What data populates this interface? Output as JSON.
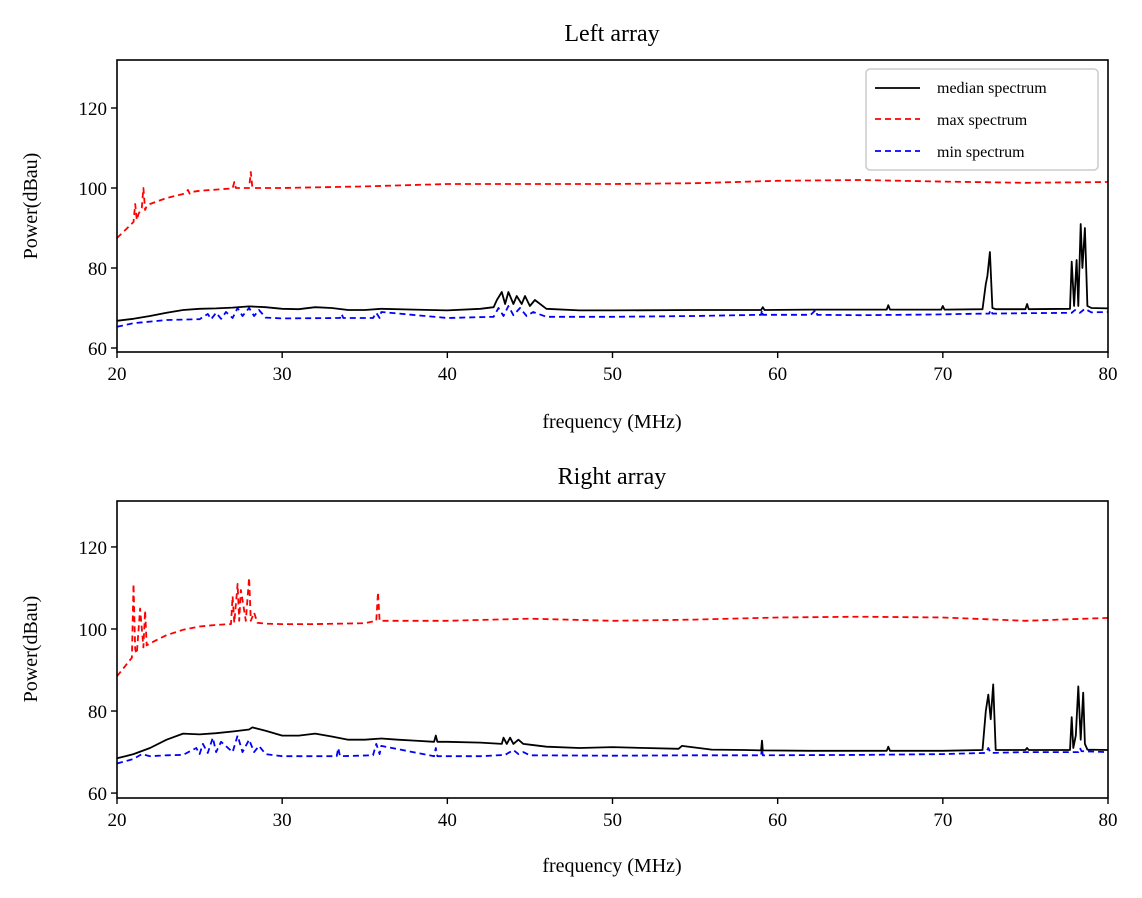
{
  "chart_data": [
    {
      "type": "line",
      "title": "Left array",
      "xlabel": "frequency (MHz)",
      "ylabel": "Power(dBau)",
      "xlim": [
        20,
        80
      ],
      "ylim": [
        59,
        132
      ],
      "xticks": [
        20,
        30,
        40,
        50,
        60,
        70,
        80
      ],
      "yticks": [
        60,
        80,
        100,
        120
      ],
      "grid": false,
      "legend": {
        "placement": "upper-right",
        "entries": [
          {
            "label": "median spectrum",
            "color": "#000000",
            "style": "solid"
          },
          {
            "label": "max spectrum",
            "color": "#ff0000",
            "style": "dashed"
          },
          {
            "label": "min spectrum",
            "color": "#0000ff",
            "style": "dashed"
          }
        ]
      },
      "series": [
        {
          "name": "median spectrum",
          "color": "#000000",
          "style": "solid",
          "x": [
            20,
            21,
            22,
            23,
            24,
            25,
            26,
            27,
            28,
            29,
            30,
            31,
            32,
            33,
            34,
            35,
            36,
            38,
            40,
            42,
            42.8,
            43,
            43.3,
            43.5,
            43.7,
            44,
            44.2,
            44.5,
            44.7,
            45,
            45.3,
            46,
            48,
            50,
            55,
            59,
            59.1,
            59.2,
            62,
            66.6,
            66.7,
            66.8,
            69.9,
            70,
            70.1,
            72.4,
            72.6,
            72.7,
            72.85,
            73,
            73.2,
            75,
            75.1,
            75.2,
            77.7,
            77.8,
            77.95,
            78.1,
            78.2,
            78.35,
            78.45,
            78.6,
            78.75,
            79,
            80
          ],
          "y": [
            66.8,
            67.3,
            68,
            68.8,
            69.5,
            69.8,
            69.9,
            70.1,
            70.4,
            70.2,
            69.8,
            69.7,
            70.2,
            70,
            69.5,
            69.5,
            69.8,
            69.6,
            69.4,
            69.8,
            70.2,
            72,
            74,
            71,
            74,
            71,
            73,
            71,
            73,
            70.5,
            72,
            69.8,
            69.4,
            69.4,
            69.5,
            69.5,
            70.2,
            69.5,
            69.6,
            69.6,
            70.7,
            69.6,
            69.6,
            70.5,
            69.6,
            69.7,
            76,
            78,
            84,
            70,
            69.7,
            69.7,
            71,
            69.7,
            69.8,
            81.6,
            70.5,
            82,
            70.5,
            91,
            80,
            90,
            70.5,
            70,
            69.9
          ]
        },
        {
          "name": "max spectrum",
          "color": "#ff0000",
          "style": "dashed",
          "x": [
            20,
            20.5,
            21,
            21.1,
            21.2,
            21.3,
            21.5,
            21.6,
            21.7,
            21.8,
            22,
            23,
            24,
            24.3,
            24.4,
            24.5,
            25,
            26,
            27,
            27.1,
            27.2,
            27.5,
            28,
            28.1,
            28.2,
            30,
            35,
            40,
            45,
            50,
            55,
            60,
            65,
            70,
            75,
            80
          ],
          "y": [
            87.5,
            89.5,
            91.5,
            96,
            92,
            93.5,
            95,
            100,
            94.5,
            95.5,
            96,
            97.5,
            98.5,
            99.5,
            98.6,
            99,
            99.3,
            99.6,
            99.9,
            101.5,
            100,
            100,
            100,
            104,
            100,
            100,
            100.4,
            101,
            101,
            101,
            101.2,
            101.8,
            102,
            101.6,
            101.3,
            101.5
          ]
        },
        {
          "name": "min spectrum",
          "color": "#0000ff",
          "style": "dashed",
          "x": [
            20,
            21,
            22,
            23,
            25,
            25.5,
            25.7,
            26,
            26.3,
            26.6,
            27,
            27.3,
            27.6,
            28,
            28.3,
            28.6,
            29,
            30,
            33.5,
            33.6,
            33.7,
            35.5,
            35.7,
            35.9,
            36,
            40,
            42.8,
            43.1,
            43.4,
            43.7,
            44,
            44.4,
            44.8,
            45.2,
            46,
            50,
            55,
            59,
            59.05,
            59.1,
            62,
            62.3,
            62.4,
            65,
            70,
            71,
            72.8,
            72.9,
            73,
            75,
            77.8,
            78,
            78.3,
            78.6,
            79,
            80
          ],
          "y": [
            65.3,
            66.2,
            66.6,
            67,
            67.2,
            68.5,
            67.2,
            68.8,
            67.3,
            69,
            67.5,
            70,
            68,
            70,
            68,
            69.5,
            67.6,
            67.4,
            67.5,
            68.5,
            67.5,
            67.5,
            68.8,
            67.5,
            69,
            67.5,
            67.8,
            70,
            68,
            70.5,
            68.2,
            70,
            68,
            69,
            67.8,
            67.8,
            68,
            68.3,
            69.5,
            68.3,
            68.3,
            69.5,
            68.3,
            68.2,
            68.4,
            68.5,
            68.6,
            69.5,
            68.6,
            68.7,
            68.8,
            69.5,
            68.8,
            69.8,
            68.9,
            69
          ]
        }
      ]
    },
    {
      "type": "line",
      "title": "Right array",
      "xlabel": "frequency (MHz)",
      "ylabel": "Power(dBau)",
      "xlim": [
        20,
        80
      ],
      "ylim": [
        58.8,
        131.2
      ],
      "xticks": [
        20,
        30,
        40,
        50,
        60,
        70,
        80
      ],
      "yticks": [
        60,
        80,
        100,
        120
      ],
      "grid": false,
      "series": [
        {
          "name": "median spectrum",
          "color": "#000000",
          "style": "solid",
          "x": [
            20,
            20.5,
            21,
            22,
            23,
            24,
            25,
            26,
            27,
            28,
            28.2,
            29,
            30,
            31,
            32,
            33,
            34,
            35,
            36,
            37,
            38,
            39.2,
            39.3,
            39.4,
            40,
            42,
            43.3,
            43.4,
            43.6,
            43.8,
            44,
            44.3,
            44.6,
            45,
            46,
            48,
            50,
            52,
            54,
            54.2,
            56,
            58,
            59,
            59.05,
            59.1,
            62,
            66.6,
            66.7,
            66.8,
            70,
            72.4,
            72.6,
            72.75,
            72.9,
            73.05,
            73.2,
            75,
            75.1,
            75.2,
            77.7,
            77.8,
            77.9,
            78.05,
            78.2,
            78.35,
            78.5,
            78.6,
            78.75,
            80
          ],
          "y": [
            68.5,
            69,
            69.5,
            71,
            73,
            74.5,
            74.3,
            74.6,
            75,
            75.5,
            76,
            75.2,
            74,
            74,
            74.5,
            73.8,
            73,
            73,
            73.3,
            73,
            72.8,
            72.5,
            74,
            72.5,
            72.5,
            72.3,
            72,
            73.5,
            72,
            73.5,
            72,
            73,
            72,
            71.8,
            71.3,
            71,
            71.2,
            71,
            70.8,
            71.5,
            70.6,
            70.5,
            70.4,
            72.8,
            70.4,
            70.3,
            70.3,
            71.3,
            70.3,
            70.3,
            70.5,
            80,
            84,
            78,
            86.5,
            70.5,
            70.5,
            71,
            70.5,
            70.5,
            78.5,
            71,
            74,
            86,
            73,
            84.5,
            72,
            70.6,
            70.5
          ]
        },
        {
          "name": "max spectrum",
          "color": "#ff0000",
          "style": "dashed",
          "x": [
            20,
            20.5,
            20.9,
            21,
            21.1,
            21.2,
            21.4,
            21.6,
            21.7,
            21.8,
            22,
            23,
            24,
            25,
            26,
            26.9,
            27,
            27.1,
            27.3,
            27.4,
            27.5,
            27.8,
            28,
            28.1,
            28.3,
            28.5,
            29,
            30,
            32,
            35,
            35.7,
            35.8,
            35.9,
            36,
            38,
            40,
            45,
            50,
            55,
            60,
            65,
            70,
            75,
            80
          ],
          "y": [
            88.5,
            91,
            93,
            111,
            95,
            94,
            105,
            95.5,
            104.5,
            96,
            96.5,
            98.5,
            99.8,
            100.6,
            101,
            101.2,
            108,
            101.5,
            111,
            102,
            109.5,
            102,
            112.5,
            102,
            104,
            101.5,
            101.3,
            101.2,
            101.2,
            101.4,
            102,
            109,
            102,
            102,
            102,
            102,
            102.5,
            102,
            102.3,
            102.8,
            103,
            102.8,
            102,
            102.7
          ]
        },
        {
          "name": "min spectrum",
          "color": "#0000ff",
          "style": "dashed",
          "x": [
            20,
            21,
            21.5,
            22,
            23,
            24,
            24.8,
            25,
            25.2,
            25.5,
            25.8,
            26,
            26.3,
            27,
            27.3,
            27.6,
            28,
            28.3,
            28.6,
            29,
            30,
            33.3,
            33.4,
            33.5,
            35.5,
            35.7,
            35.9,
            36,
            39.2,
            39.3,
            39.4,
            42,
            43.5,
            44,
            44.3,
            44.6,
            45,
            50,
            55,
            59,
            59.05,
            59.1,
            65,
            70,
            72.6,
            72.75,
            72.9,
            75,
            78.2,
            78.3,
            78.4,
            80
          ],
          "y": [
            67.2,
            68.3,
            69.5,
            69,
            69.2,
            69.3,
            71,
            69.5,
            72,
            69.8,
            73.5,
            70,
            72.5,
            70,
            74,
            70,
            73,
            70,
            71.5,
            69.5,
            69,
            69,
            71,
            69,
            69.2,
            72,
            69.5,
            71.5,
            69,
            71,
            69,
            69,
            69.3,
            70.5,
            69.5,
            70,
            69.2,
            69.1,
            69.2,
            69.2,
            71,
            69.2,
            69.3,
            69.5,
            69.8,
            71,
            69.8,
            70,
            70,
            71,
            70.2,
            70
          ]
        }
      ]
    }
  ]
}
